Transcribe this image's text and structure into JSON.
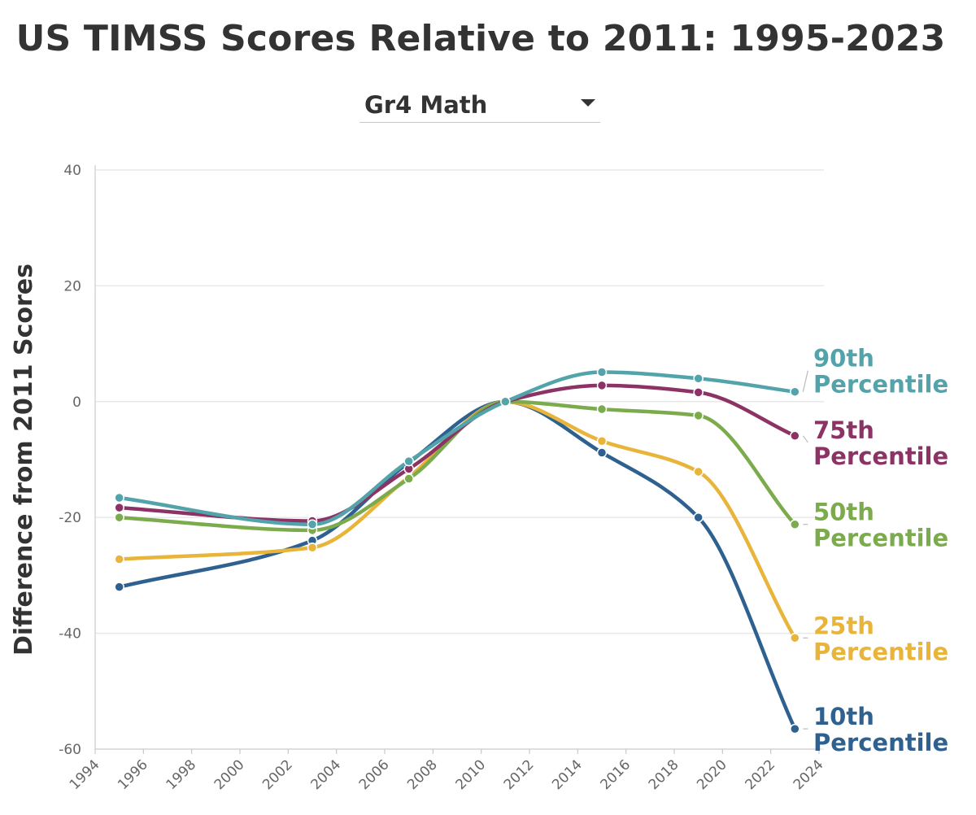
{
  "title": "US TIMSS Scores Relative to 2011: 1995-2023",
  "dropdown": {
    "selected": "Gr4 Math",
    "icon": "caret-down-icon"
  },
  "chart_data": {
    "type": "line",
    "title": "US TIMSS Scores Relative to 2011: 1995-2023",
    "xlabel": "",
    "ylabel": "Difference from 2011 Scores",
    "xlim": [
      1994,
      2024
    ],
    "ylim": [
      -60,
      40
    ],
    "xticks": [
      1994,
      1996,
      1998,
      2000,
      2002,
      2004,
      2006,
      2008,
      2010,
      2012,
      2014,
      2016,
      2018,
      2020,
      2022,
      2024
    ],
    "yticks": [
      40,
      20,
      0,
      -20,
      -40,
      -60
    ],
    "grid": "horizontal",
    "legend": "direct labels at line ends (right)",
    "x": [
      1995,
      2003,
      2007,
      2011,
      2015,
      2019,
      2023
    ],
    "series": [
      {
        "name": "10th Percentile",
        "label_line1": "10th",
        "label_line2": "Percentile",
        "color": "#2e6190",
        "values": [
          -32,
          -24,
          -10.5,
          0,
          -8.8,
          -20,
          -56.5
        ]
      },
      {
        "name": "25th Percentile",
        "label_line1": "25th",
        "label_line2": "Percentile",
        "color": "#e8b43a",
        "values": [
          -27.2,
          -25.2,
          -13,
          0,
          -6.8,
          -12.1,
          -40.8
        ]
      },
      {
        "name": "50th Percentile",
        "label_line1": "50th",
        "label_line2": "Percentile",
        "color": "#7bab4c",
        "values": [
          -20,
          -22.2,
          -13.3,
          0,
          -1.3,
          -2.4,
          -21.2
        ]
      },
      {
        "name": "75th Percentile",
        "label_line1": "75th",
        "label_line2": "Percentile",
        "color": "#8d3265",
        "values": [
          -18.3,
          -20.6,
          -11.6,
          0,
          2.8,
          1.6,
          -5.9
        ]
      },
      {
        "name": "90th Percentile",
        "label_line1": "90th",
        "label_line2": "Percentile",
        "color": "#52a4aa",
        "values": [
          -16.6,
          -21.2,
          -10.3,
          0,
          5.1,
          4,
          1.7
        ]
      }
    ]
  }
}
